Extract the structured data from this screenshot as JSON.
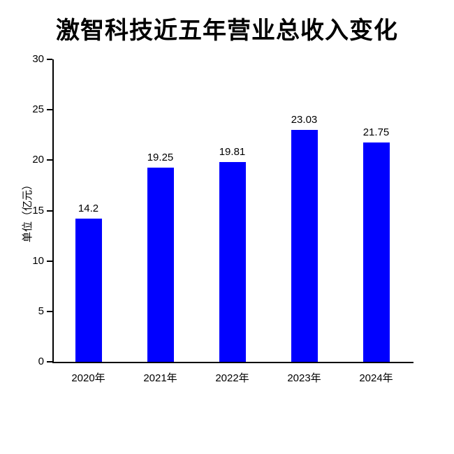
{
  "chart_data": {
    "type": "bar",
    "title": "激智科技近五年营业总收入变化",
    "xlabel": "",
    "ylabel": "单位（亿元）",
    "categories": [
      "2020年",
      "2021年",
      "2022年",
      "2023年",
      "2024年"
    ],
    "values": [
      14.2,
      19.25,
      19.81,
      23.03,
      21.75
    ],
    "value_labels": [
      "14.2",
      "19.25",
      "19.81",
      "23.03",
      "21.75"
    ],
    "ylim": [
      0,
      30
    ],
    "yticks": [
      0,
      5,
      10,
      15,
      20,
      25,
      30
    ],
    "bar_color": "#0000ff",
    "axis_color": "#000000",
    "background_color": "#ffffff",
    "grid": false,
    "legend": false
  }
}
